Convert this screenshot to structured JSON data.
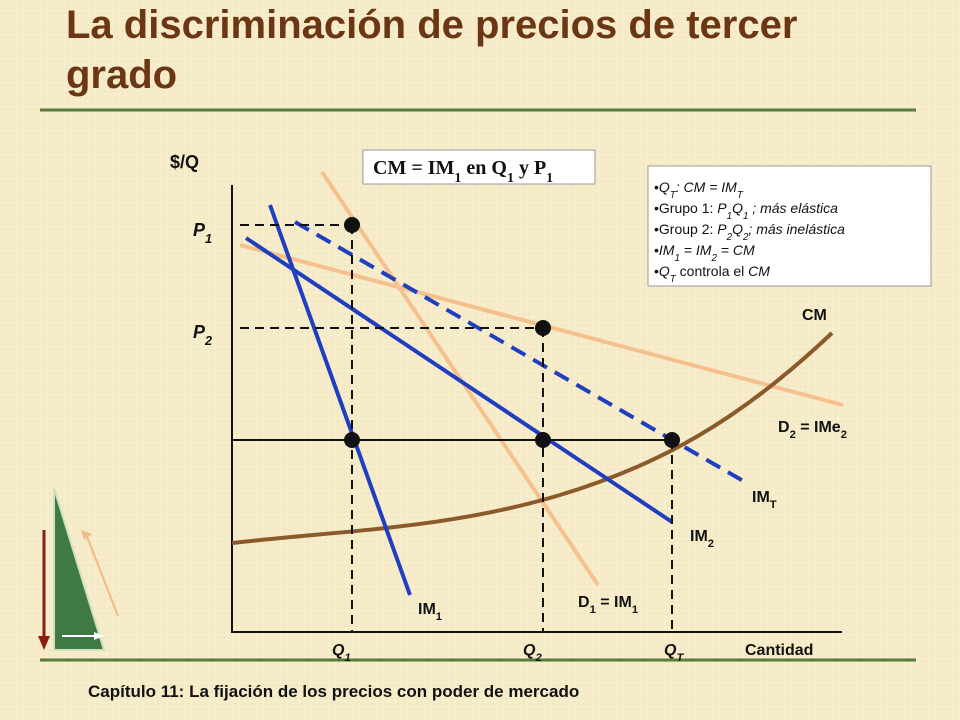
{
  "title": [
    "La discriminación de precios de tercer",
    "grado"
  ],
  "footer": "Capítulo 11: La fijación de los precios con poder de mercado",
  "callout": [
    {
      "t": "CM = IM"
    },
    {
      "sub": "1"
    },
    {
      "t": " en Q"
    },
    {
      "sub": "1"
    },
    {
      "t": " y P"
    },
    {
      "sub": "1"
    }
  ],
  "bullets": [
    [
      {
        "t": "•"
      },
      {
        "t": "Q",
        "i": true
      },
      {
        "sub": "T",
        "i": true
      },
      {
        "t": ": CM = IM",
        "i": true
      },
      {
        "sub": "T",
        "i": true
      }
    ],
    [
      {
        "t": "•Grupo 1: "
      },
      {
        "t": "P",
        "i": true
      },
      {
        "sub": "1",
        "i": true
      },
      {
        "t": "Q",
        "i": true
      },
      {
        "sub": "1",
        "i": true
      },
      {
        "t": " ; más elástica",
        "i": true
      }
    ],
    [
      {
        "t": "•Group 2: "
      },
      {
        "t": "P",
        "i": true
      },
      {
        "sub": "2",
        "i": true
      },
      {
        "t": "Q",
        "i": true
      },
      {
        "sub": "2",
        "i": true
      },
      {
        "t": "; más inelástica",
        "i": true
      }
    ],
    [
      {
        "t": "•"
      },
      {
        "t": "IM",
        "i": true
      },
      {
        "sub": "1",
        "i": true
      },
      {
        "t": " = IM",
        "i": true
      },
      {
        "sub": "2",
        "i": true
      },
      {
        "t": " = CM",
        "i": true
      }
    ],
    [
      {
        "t": "•"
      },
      {
        "t": "Q",
        "i": true
      },
      {
        "sub": "T",
        "i": true
      },
      {
        "t": " controla el "
      },
      {
        "t": "CM",
        "i": true
      }
    ]
  ],
  "labels": {
    "y_axis": [
      {
        "t": "$/Q"
      }
    ],
    "x_axis": [
      {
        "t": "Cantidad"
      }
    ],
    "p1": [
      {
        "t": "P",
        "i": true
      },
      {
        "sub": "1",
        "i": true
      }
    ],
    "p2": [
      {
        "t": "P",
        "i": true
      },
      {
        "sub": "2",
        "i": true
      }
    ],
    "q1": [
      {
        "t": "Q",
        "i": true
      },
      {
        "sub": "1",
        "i": true
      }
    ],
    "q2": [
      {
        "t": "Q",
        "i": true
      },
      {
        "sub": "2",
        "i": true
      }
    ],
    "qt": [
      {
        "t": "Q",
        "i": true
      },
      {
        "sub": "T",
        "i": true
      }
    ],
    "im1": [
      {
        "t": "IM"
      },
      {
        "sub": "1"
      }
    ],
    "d1": [
      {
        "t": "D"
      },
      {
        "sub": "1"
      },
      {
        "t": " = IM"
      },
      {
        "sub": "1"
      }
    ],
    "im2": [
      {
        "t": "IM"
      },
      {
        "sub": "2"
      }
    ],
    "imt": [
      {
        "t": "IM"
      },
      {
        "sub": "T"
      }
    ],
    "d2": [
      {
        "t": "D"
      },
      {
        "sub": "2"
      },
      {
        "t": " = IMe"
      },
      {
        "sub": "2"
      }
    ],
    "cm": [
      {
        "t": "CM"
      }
    ]
  }
}
